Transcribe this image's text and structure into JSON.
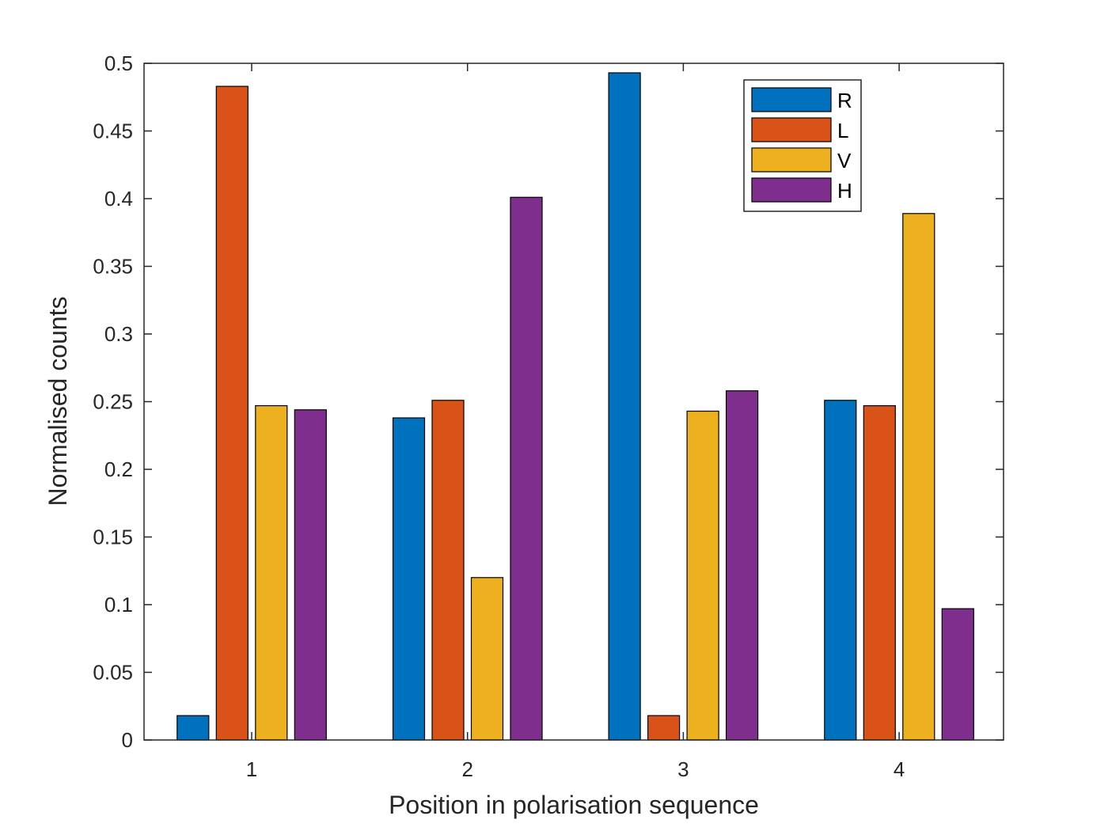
{
  "chart_data": {
    "type": "bar",
    "categories": [
      "1",
      "2",
      "3",
      "4"
    ],
    "series": [
      {
        "name": "R",
        "color": "#0072BD",
        "values": [
          0.018,
          0.238,
          0.493,
          0.251
        ]
      },
      {
        "name": "L",
        "color": "#D95319",
        "values": [
          0.483,
          0.251,
          0.018,
          0.247
        ]
      },
      {
        "name": "V",
        "color": "#EDB120",
        "values": [
          0.247,
          0.12,
          0.243,
          0.389
        ]
      },
      {
        "name": "H",
        "color": "#7E2F8E",
        "values": [
          0.244,
          0.401,
          0.258,
          0.097
        ]
      }
    ],
    "xlabel": "Position in polarisation sequence",
    "ylabel": "Normalised counts",
    "ylim": [
      0,
      0.5
    ],
    "yticks": [
      "0",
      "0.05",
      "0.1",
      "0.15",
      "0.2",
      "0.25",
      "0.3",
      "0.35",
      "0.4",
      "0.45",
      "0.5"
    ],
    "grid": false,
    "legend_position": "top-right"
  }
}
